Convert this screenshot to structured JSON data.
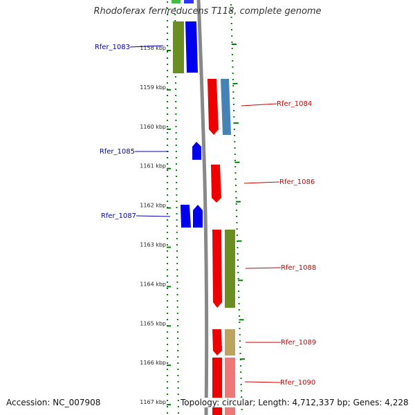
{
  "title": "Rhodoferax ferrireducens T118, complete genome",
  "footer": {
    "accession": "Accession: NC_007908",
    "summary": "Topology: circular; Length: 4,712,337 bp; Genes: 4,228"
  },
  "colors": {
    "forward_label": "#0000aa",
    "reverse_label": "#cc0000",
    "tick": "#008000",
    "backbone": "#888888"
  },
  "ticks": [
    "1158 kbp",
    "1159 kbp",
    "1160 kbp",
    "1161 kbp",
    "1162 kbp",
    "1163 kbp",
    "1164 kbp",
    "1165 kbp",
    "1166 kbp",
    "1167 kbp"
  ],
  "labels": [
    {
      "text": "Rfer_1083",
      "strand": "forward"
    },
    {
      "text": "Rfer_1084",
      "strand": "reverse"
    },
    {
      "text": "Rfer_1085",
      "strand": "forward"
    },
    {
      "text": "Rfer_1086",
      "strand": "reverse"
    },
    {
      "text": "Rfer_1087",
      "strand": "forward"
    },
    {
      "text": "Rfer_1088",
      "strand": "reverse"
    },
    {
      "text": "Rfer_1089",
      "strand": "reverse"
    },
    {
      "text": "Rfer_1090",
      "strand": "reverse"
    }
  ]
}
